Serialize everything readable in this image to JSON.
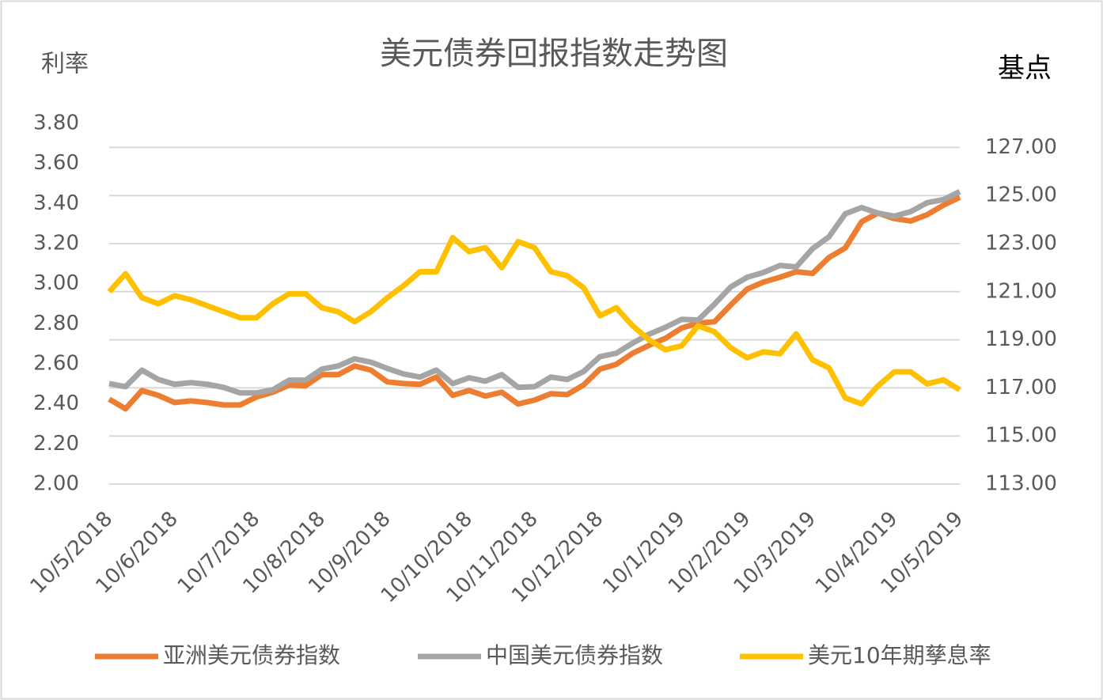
{
  "chart_data": {
    "type": "line",
    "title": "美元债券回报指数走势图",
    "y_label": "利率",
    "y2_label": "基点",
    "categories": [
      "10/5/2018",
      null,
      null,
      null,
      "10/6/2018",
      null,
      null,
      null,
      null,
      "10/7/2018",
      null,
      null,
      null,
      "10/8/2018",
      null,
      null,
      null,
      "10/9/2018",
      null,
      null,
      null,
      null,
      "10/10/2018",
      null,
      null,
      null,
      "10/11/2018",
      null,
      null,
      null,
      "10/12/2018",
      null,
      null,
      null,
      null,
      "10/1/2019",
      null,
      null,
      null,
      "10/2/2019",
      null,
      null,
      null,
      "10/3/2019",
      null,
      null,
      null,
      null,
      "10/4/2019",
      null,
      null,
      null,
      "10/5/2019"
    ],
    "ylim": [
      2.0,
      3.8
    ],
    "yticks": [
      {
        "value": 2.0,
        "label": "2.00"
      },
      {
        "value": 2.2,
        "label": "2.20"
      },
      {
        "value": 2.4,
        "label": "2.40"
      },
      {
        "value": 2.6,
        "label": "2.60"
      },
      {
        "value": 2.8,
        "label": "2.80"
      },
      {
        "value": 3.0,
        "label": "3.00"
      },
      {
        "value": 3.2,
        "label": "3.20"
      },
      {
        "value": 3.4,
        "label": "3.40"
      },
      {
        "value": 3.6,
        "label": "3.60"
      },
      {
        "value": 3.8,
        "label": "3.80"
      }
    ],
    "y2lim": [
      113,
      128
    ],
    "y2ticks": [
      {
        "value": 113,
        "label": "113.00"
      },
      {
        "value": 115,
        "label": "115.00"
      },
      {
        "value": 117,
        "label": "117.00"
      },
      {
        "value": 119,
        "label": "119.00"
      },
      {
        "value": 121,
        "label": "121.00"
      },
      {
        "value": 123,
        "label": "123.00"
      },
      {
        "value": 125,
        "label": "125.00"
      },
      {
        "value": 127,
        "label": "127.00"
      }
    ],
    "grid": true,
    "legend": "bottom",
    "series": [
      {
        "name": "亚洲美元债券指数",
        "color": "#ed7d31",
        "axis": "y2",
        "values": [
          116.53,
          116.13,
          116.89,
          116.69,
          116.39,
          116.46,
          116.39,
          116.29,
          116.29,
          116.62,
          116.82,
          117.12,
          117.09,
          117.55,
          117.55,
          117.91,
          117.74,
          117.25,
          117.18,
          117.15,
          117.45,
          116.69,
          116.89,
          116.66,
          116.82,
          116.33,
          116.49,
          116.76,
          116.72,
          117.12,
          117.78,
          117.98,
          118.44,
          118.77,
          119.06,
          119.49,
          119.69,
          119.75,
          120.45,
          121.11,
          121.4,
          121.6,
          121.83,
          121.76,
          122.42,
          122.82,
          123.91,
          124.27,
          124.04,
          123.94,
          124.2,
          124.6,
          124.93
        ]
      },
      {
        "name": "中国美元债券指数",
        "color": "#a5a5a5",
        "axis": "y2",
        "values": [
          117.18,
          117.05,
          117.74,
          117.35,
          117.15,
          117.22,
          117.15,
          117.02,
          116.79,
          116.79,
          116.92,
          117.32,
          117.32,
          117.78,
          117.91,
          118.21,
          118.07,
          117.81,
          117.58,
          117.45,
          117.74,
          117.18,
          117.42,
          117.28,
          117.55,
          117.02,
          117.05,
          117.45,
          117.35,
          117.68,
          118.3,
          118.44,
          118.86,
          119.23,
          119.52,
          119.85,
          119.82,
          120.48,
          121.2,
          121.6,
          121.8,
          122.09,
          122.03,
          122.79,
          123.28,
          124.24,
          124.5,
          124.27,
          124.14,
          124.33,
          124.7,
          124.83,
          125.16
        ]
      },
      {
        "name": "美元10年期孳息率",
        "color": "#ffc000",
        "values": [
          2.96,
          3.05,
          2.93,
          2.9,
          2.94,
          2.92,
          2.89,
          2.86,
          2.83,
          2.83,
          2.9,
          2.95,
          2.95,
          2.88,
          2.86,
          2.81,
          2.86,
          2.93,
          2.99,
          3.06,
          3.06,
          3.23,
          3.16,
          3.18,
          3.08,
          3.21,
          3.18,
          3.06,
          3.04,
          2.98,
          2.84,
          2.88,
          2.79,
          2.72,
          2.67,
          2.69,
          2.79,
          2.76,
          2.68,
          2.63,
          2.66,
          2.65,
          2.75,
          2.62,
          2.58,
          2.43,
          2.4,
          2.49,
          2.56,
          2.56,
          2.5,
          2.52,
          2.47
        ]
      }
    ]
  }
}
